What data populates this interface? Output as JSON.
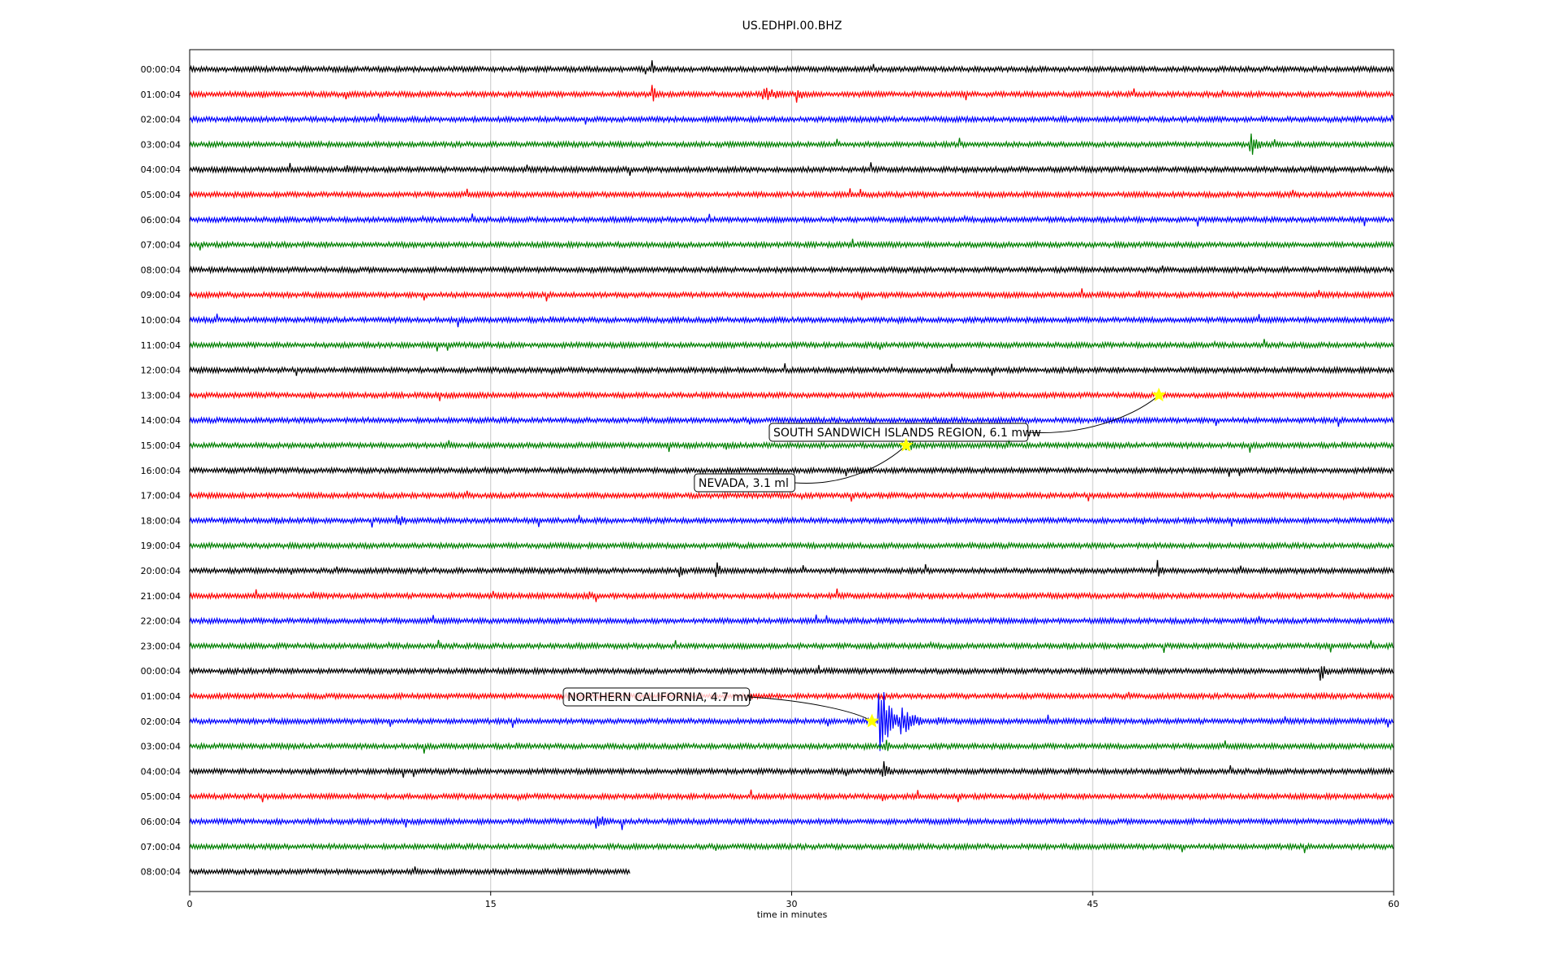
{
  "chart_data": {
    "type": "line",
    "title": "US.EDHPI.00.BHZ",
    "xlabel": "time in minutes",
    "ylabel": "",
    "xlim": [
      0,
      60
    ],
    "x_ticks": [
      "0",
      "15",
      "30",
      "45",
      "60"
    ],
    "grid": "vertical",
    "trace_colors": [
      "#000000",
      "#ff0000",
      "#0000ff",
      "#008000"
    ],
    "row_labels": [
      "00:00:04",
      "01:00:04",
      "02:00:04",
      "03:00:04",
      "04:00:04",
      "05:00:04",
      "06:00:04",
      "07:00:04",
      "08:00:04",
      "09:00:04",
      "10:00:04",
      "11:00:04",
      "12:00:04",
      "13:00:04",
      "14:00:04",
      "15:00:04",
      "16:00:04",
      "17:00:04",
      "18:00:04",
      "19:00:04",
      "20:00:04",
      "21:00:04",
      "22:00:04",
      "23:00:04",
      "00:00:04",
      "01:00:04",
      "02:00:04",
      "03:00:04",
      "04:00:04",
      "05:00:04",
      "06:00:04",
      "07:00:04",
      "08:00:04"
    ],
    "last_row_end_minute": 22,
    "events": [
      {
        "label": "SOUTH SANDWICH ISLANDS REGION, 6.1 mww",
        "row": 13,
        "minute": 48.3,
        "marker_color": "#ffff00"
      },
      {
        "label": "NEVADA, 3.1 ml",
        "row": 15,
        "minute": 35.7,
        "marker_color": "#ffff00"
      },
      {
        "label": "NORTHERN CALIFORNIA, 4.7 mw",
        "row": 26,
        "minute": 34.0,
        "marker_color": "#ffff00"
      }
    ]
  }
}
